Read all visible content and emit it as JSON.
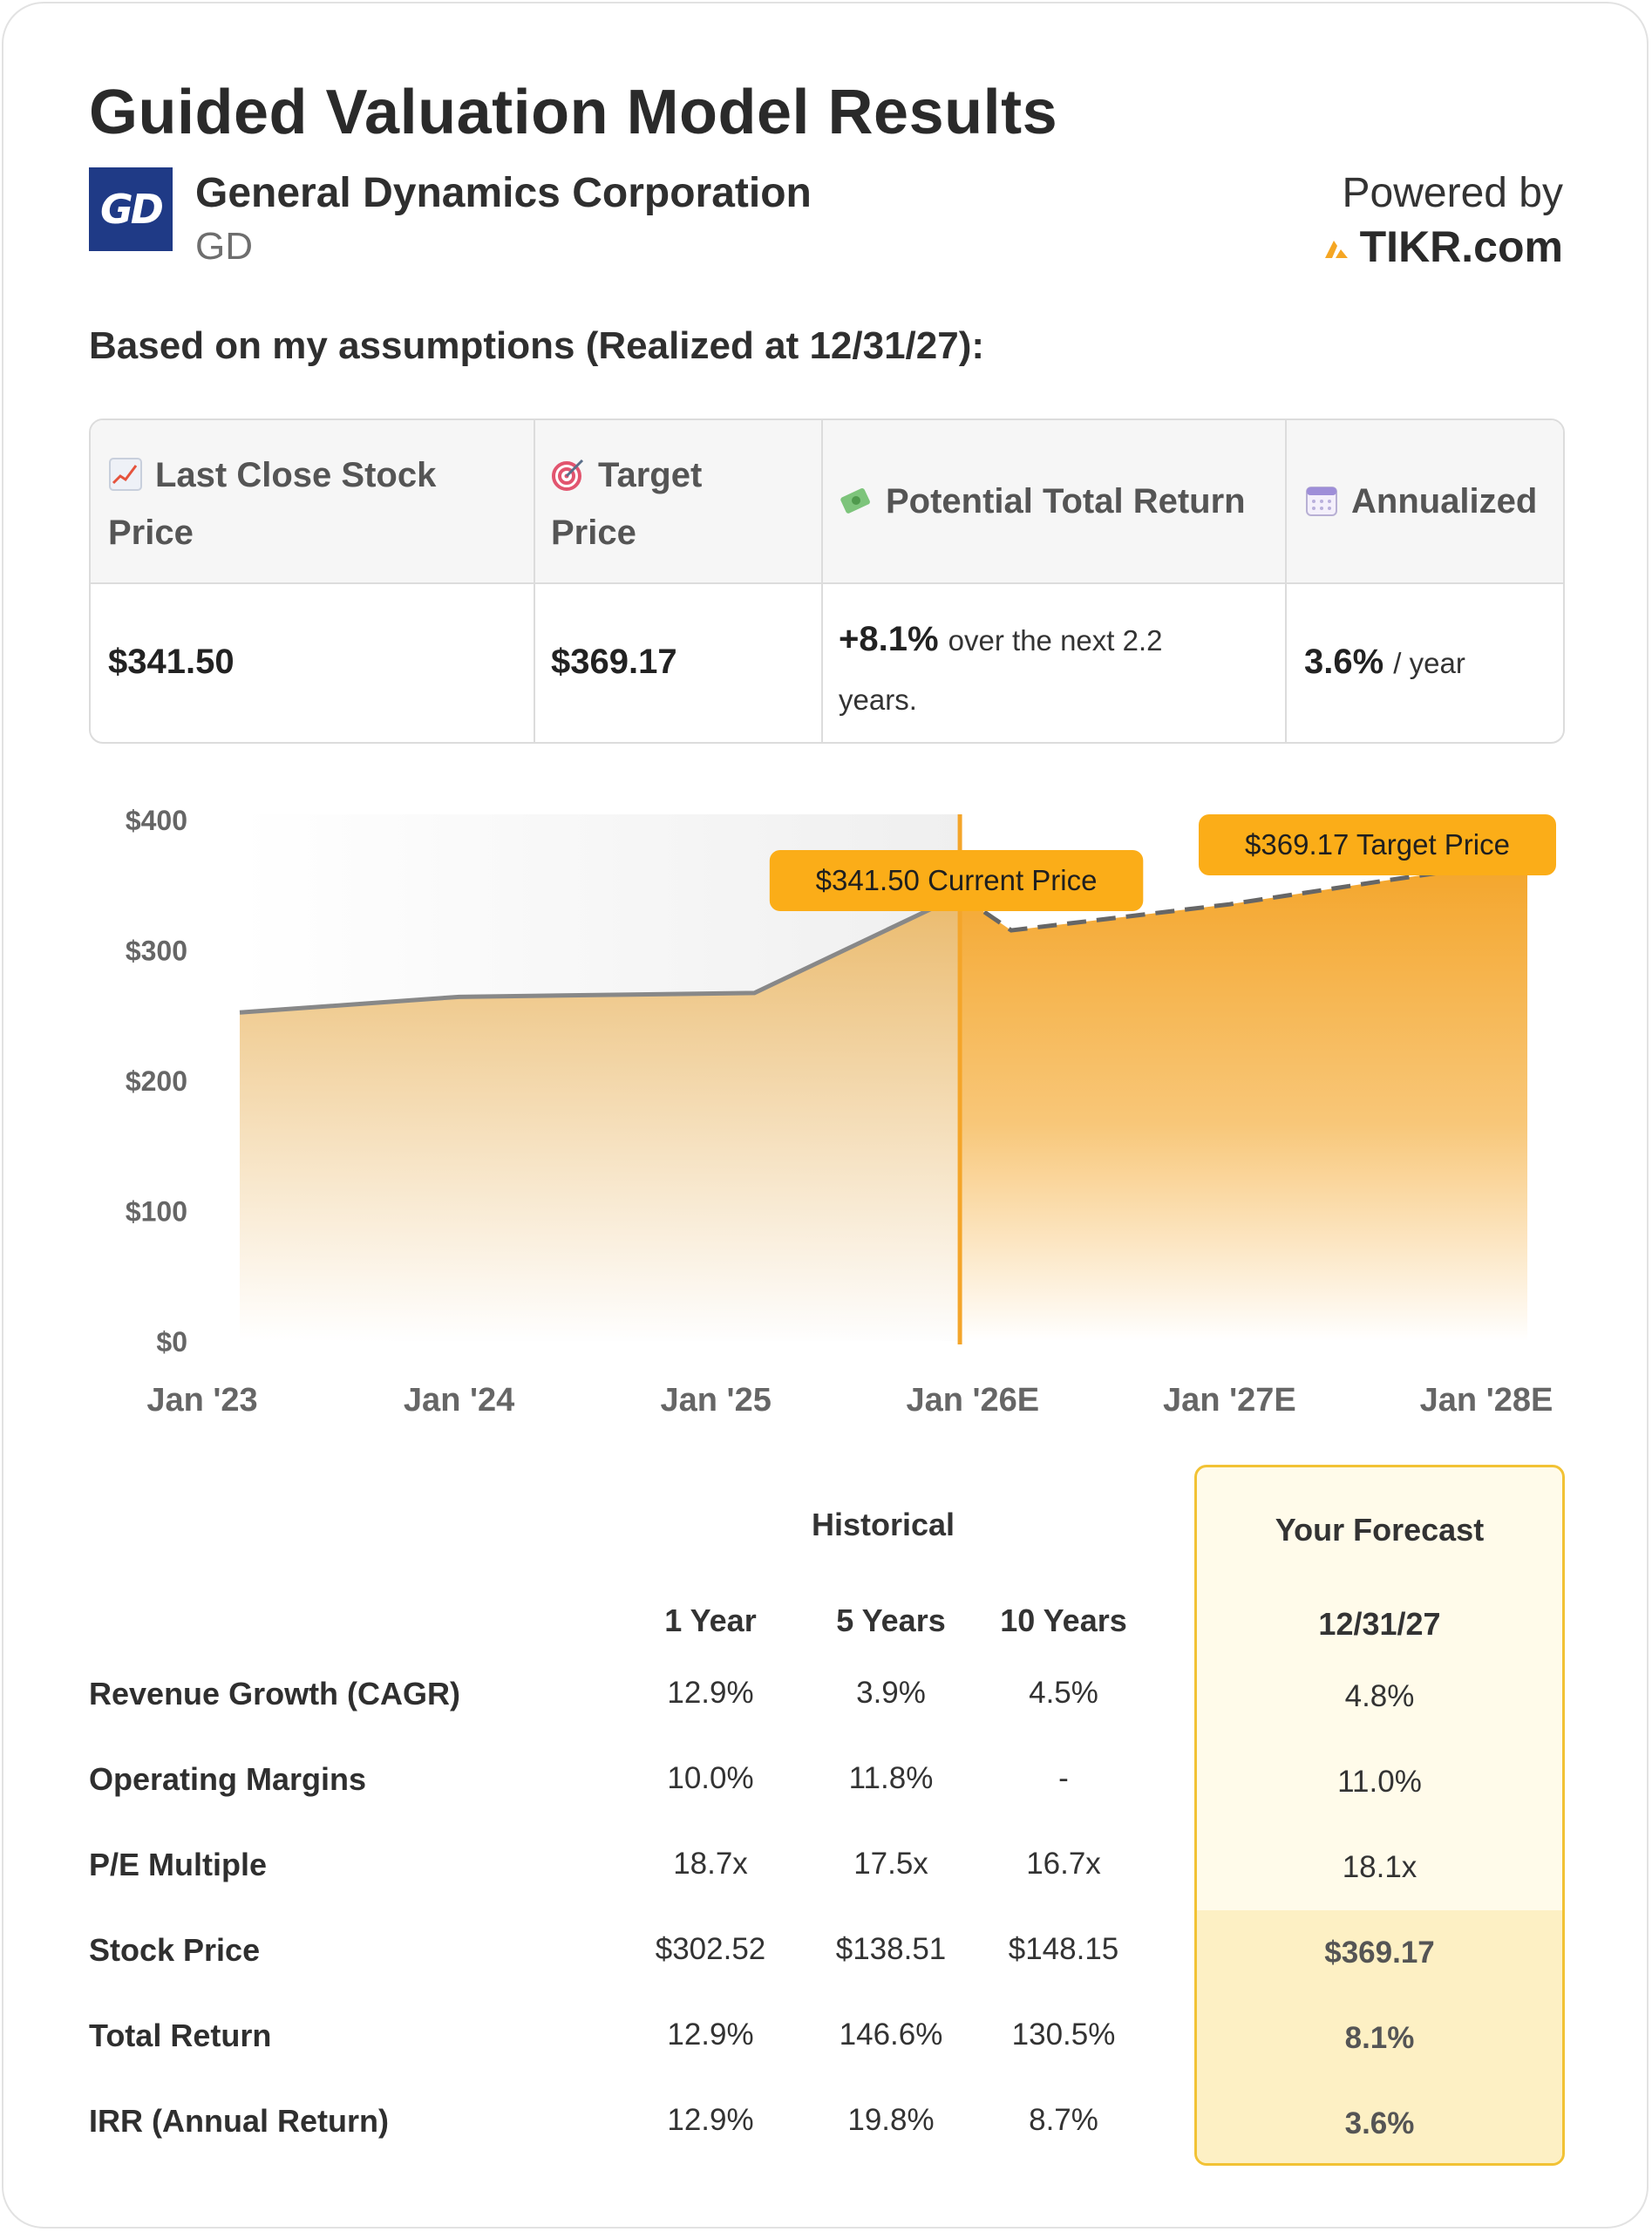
{
  "header": {
    "title": "Guided Valuation Model Results",
    "logo_text": "GD",
    "company_name": "General Dynamics Corporation",
    "ticker": "GD",
    "powered_by": "Powered by",
    "brand": "TIKR.com"
  },
  "subheading": "Based on my assumptions (Realized at 12/31/27):",
  "summary": {
    "columns": [
      {
        "label_line1": "Last Close Stock",
        "label_line2": "Price",
        "icon": "chart-up-icon",
        "value": "$341.50"
      },
      {
        "label_line1": "Target",
        "label_line2": "Price",
        "icon": "target-icon",
        "value": "$369.17"
      },
      {
        "label_line1": "Potential Total Return",
        "icon": "money-icon",
        "value": "+8.1%",
        "value_suffix_line1": "over the next 2.2",
        "value_suffix_line2": "years."
      },
      {
        "label_line1": "Annualized",
        "icon": "calendar-icon",
        "value": "3.6%",
        "value_suffix_line1": "/ year"
      }
    ]
  },
  "chart_data": {
    "type": "area",
    "x_ticks": [
      "Jan '23",
      "Jan '24",
      "Jan '25",
      "Jan '26E",
      "Jan '27E",
      "Jan '28E"
    ],
    "y_ticks": [
      "$0",
      "$100",
      "$200",
      "$300",
      "$400"
    ],
    "ylim": [
      0,
      400
    ],
    "historical": {
      "x": [
        2023.15,
        2024.0,
        2025.15,
        2025.95
      ],
      "y": [
        252,
        264,
        267,
        342
      ]
    },
    "forecast": {
      "x": [
        2025.95,
        2026.15,
        2027.0,
        2027.6,
        2028.15
      ],
      "y": [
        342,
        315,
        335,
        353,
        369.17
      ]
    },
    "current_price_label": "$341.50 Current Price",
    "target_price_label": "$369.17 Target Price",
    "colors": {
      "area": "#f4a52a",
      "line": "#888888",
      "divider": "#f4a52a",
      "tooltip": "#fbad18"
    }
  },
  "table": {
    "historical_header": "Historical",
    "forecast_header": "Your Forecast",
    "columns": [
      "1 Year",
      "5 Years",
      "10 Years"
    ],
    "forecast_date": "12/31/27",
    "rows": [
      {
        "label": "Revenue Growth (CAGR)",
        "values": [
          "12.9%",
          "3.9%",
          "4.5%"
        ],
        "forecast": "4.8%"
      },
      {
        "label": "Operating Margins",
        "values": [
          "10.0%",
          "11.8%",
          "-"
        ],
        "forecast": "11.0%"
      },
      {
        "label": "P/E Multiple",
        "values": [
          "18.7x",
          "17.5x",
          "16.7x"
        ],
        "forecast": "18.1x"
      },
      {
        "label": "Stock Price",
        "values": [
          "$302.52",
          "$138.51",
          "$148.15"
        ],
        "forecast": "$369.17"
      },
      {
        "label": "Total Return",
        "values": [
          "12.9%",
          "146.6%",
          "130.5%"
        ],
        "forecast": "8.1%"
      },
      {
        "label": "IRR (Annual Return)",
        "values": [
          "12.9%",
          "19.8%",
          "8.7%"
        ],
        "forecast": "3.6%"
      }
    ]
  }
}
